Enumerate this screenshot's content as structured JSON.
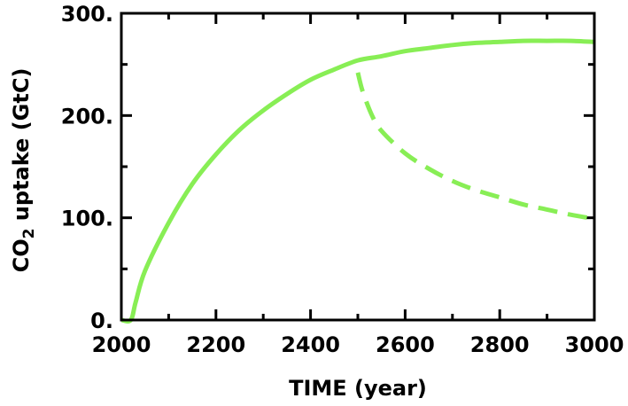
{
  "chart_data": {
    "type": "line",
    "xlabel": "TIME (year)",
    "ylabel": {
      "prefix": "CO",
      "subscript": "2",
      "suffix": " uptake (GtC)"
    },
    "xlim": [
      2000,
      3000
    ],
    "ylim": [
      0,
      300
    ],
    "x_ticks": [
      "2000",
      "2200",
      "2400",
      "2600",
      "2800",
      "3000"
    ],
    "y_ticks": [
      "0.",
      "100.",
      "200.",
      "300."
    ],
    "x_tick_values": [
      2000,
      2200,
      2400,
      2600,
      2800,
      3000
    ],
    "y_tick_values": [
      0,
      100,
      200,
      300
    ],
    "x_minor_step": 100,
    "y_minor_step": 50,
    "grid": false,
    "line_color": "#88ee55",
    "series": [
      {
        "style": "solid",
        "x": [
          2000,
          2020,
          2030,
          2050,
          2100,
          2150,
          2200,
          2250,
          2300,
          2350,
          2400,
          2450,
          2500,
          2550,
          2600,
          2650,
          2700,
          2750,
          2800,
          2850,
          2900,
          2950,
          3000
        ],
        "y": [
          0,
          0,
          17,
          48,
          95,
          133,
          162,
          186,
          205,
          221,
          235,
          245,
          254,
          258,
          263,
          266,
          269,
          271,
          272,
          273,
          273,
          273,
          272
        ]
      },
      {
        "style": "dashed",
        "x": [
          2500,
          2510,
          2530,
          2550,
          2600,
          2650,
          2700,
          2750,
          2800,
          2850,
          2900,
          2950,
          3000
        ],
        "y": [
          242,
          224,
          200,
          185,
          163,
          148,
          136,
          127,
          120,
          113,
          108,
          103,
          99
        ]
      }
    ]
  }
}
